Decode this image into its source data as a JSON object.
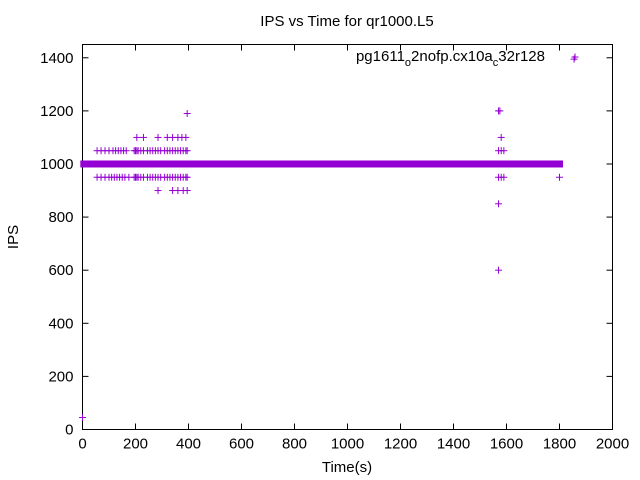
{
  "chart_data": {
    "type": "scatter",
    "title": "IPS vs Time for qr1000.L5",
    "xlabel": "Time(s)",
    "ylabel": "IPS",
    "xlim": [
      0,
      2000
    ],
    "ylim": [
      0,
      1450
    ],
    "xticks": [
      "0",
      "200",
      "400",
      "600",
      "800",
      "1000",
      "1200",
      "1400",
      "1600",
      "1800",
      "2000"
    ],
    "yticks": [
      "0",
      "200",
      "400",
      "600",
      "800",
      "1000",
      "1200",
      "1400"
    ],
    "grid": false,
    "legend_position": "top-right",
    "marker": "plus",
    "color": "#9400d3",
    "series": [
      {
        "name_parts": [
          "pg1611",
          "o",
          "2nofp.cx10a",
          "c",
          "32r128"
        ],
        "main_band": {
          "x_start": 5,
          "x_end": 1800,
          "y": 1000
        },
        "points": [
          [
            0,
            45
          ],
          [
            1855,
            1395
          ],
          [
            1800,
            950
          ],
          [
            1570,
            600
          ],
          [
            1570,
            850
          ],
          [
            1570,
            1200
          ],
          [
            1575,
            1200
          ],
          [
            1580,
            1100
          ],
          [
            395,
            1190
          ],
          [
            285,
            900
          ],
          [
            340,
            900
          ],
          [
            360,
            900
          ],
          [
            380,
            900
          ],
          [
            395,
            900
          ],
          [
            205,
            1100
          ],
          [
            230,
            1100
          ],
          [
            285,
            1100
          ],
          [
            320,
            1100
          ],
          [
            340,
            1100
          ],
          [
            360,
            1100
          ],
          [
            375,
            1100
          ],
          [
            390,
            1100
          ],
          [
            1570,
            1050
          ],
          [
            1580,
            1050
          ],
          [
            1590,
            1050
          ],
          [
            1570,
            950
          ],
          [
            1580,
            950
          ],
          [
            1590,
            950
          ]
        ],
        "band_1050_x": [
          55,
          70,
          85,
          100,
          115,
          125,
          135,
          145,
          155,
          165,
          195,
          200,
          205,
          210,
          220,
          230,
          245,
          255,
          265,
          275,
          285,
          295,
          310,
          320,
          330,
          340,
          350,
          360,
          370,
          380,
          390,
          395
        ],
        "band_950_x": [
          55,
          70,
          85,
          100,
          110,
          120,
          130,
          140,
          150,
          160,
          175,
          195,
          200,
          205,
          210,
          220,
          230,
          245,
          255,
          265,
          275,
          285,
          295,
          310,
          320,
          330,
          340,
          350,
          360,
          370,
          380,
          390,
          395
        ]
      }
    ]
  }
}
